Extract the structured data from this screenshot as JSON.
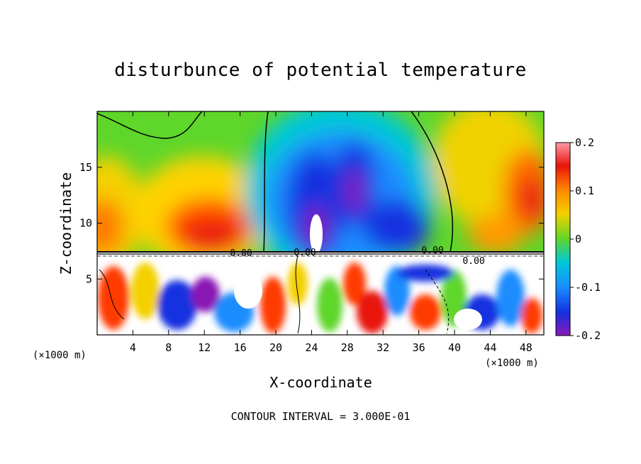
{
  "chart_data": {
    "type": "heatmap",
    "title": "disturbunce of potential temperature",
    "xlabel": "X-coordinate",
    "ylabel": "Z-coordinate",
    "x_unit": "(×1000 m)",
    "z_unit": "(×1000 m)",
    "x_range": [
      0,
      50
    ],
    "z_range": [
      0,
      20
    ],
    "x_ticks": [
      4,
      8,
      12,
      16,
      20,
      24,
      28,
      32,
      36,
      40,
      44,
      48
    ],
    "z_ticks": [
      5,
      10,
      15
    ],
    "colorbar": {
      "range": [
        -0.2,
        0.2
      ],
      "tick_labels": [
        "0.2",
        "0.1",
        "0",
        "-0.1",
        "-0.2"
      ],
      "tick_values": [
        0.2,
        0.1,
        0,
        -0.1,
        -0.2
      ]
    },
    "contour_labels": [
      "0.00",
      "0.00",
      "0.00",
      "0.00"
    ],
    "contour_interval_text": "CONTOUR INTERVAL = 3.000E-01",
    "features": [
      {
        "x": 12,
        "z": 9.5,
        "value": 0.16
      },
      {
        "x": 2,
        "z": 11,
        "value": 0.14
      },
      {
        "x": 48,
        "z": 11.5,
        "value": 0.14
      },
      {
        "x": 24,
        "z": 10,
        "value": -0.22
      },
      {
        "x": 28,
        "z": 13,
        "value": -0.16
      },
      {
        "x": 33.5,
        "z": 10,
        "value": -0.16
      }
    ]
  }
}
